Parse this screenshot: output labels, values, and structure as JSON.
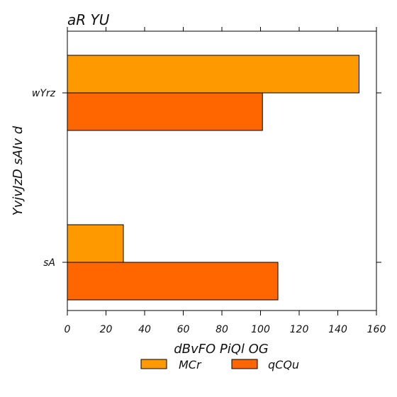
{
  "chart_data": {
    "type": "bar",
    "orientation": "horizontal",
    "title": "aR YU",
    "xlabel": "dBvFO PiQl OG",
    "ylabel": "YvjvJzD sAIv d",
    "categories": [
      "wYrz",
      "sA"
    ],
    "series": [
      {
        "name": "MCr",
        "color": "#ff9900",
        "values": [
          151,
          29
        ]
      },
      {
        "name": "qCQu",
        "color": "#ff6600",
        "values": [
          101,
          109
        ]
      }
    ],
    "xlim": [
      0,
      160
    ],
    "xticks": [
      0,
      20,
      40,
      60,
      80,
      100,
      120,
      140,
      160
    ],
    "grid": false,
    "legend_position": "bottom-center"
  }
}
